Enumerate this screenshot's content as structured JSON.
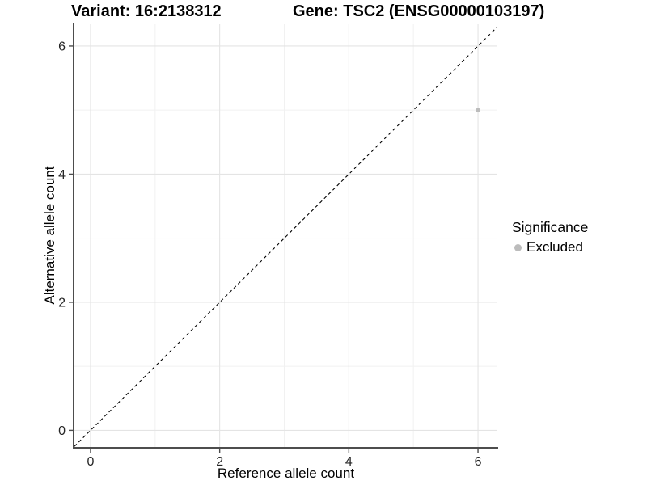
{
  "header": {
    "variant_title": "Variant: 16:2138312",
    "gene_title": "Gene: TSC2 (ENSG00000103197)"
  },
  "legend": {
    "title": "Significance",
    "items": [
      {
        "label": "Excluded",
        "color": "#bcbcbc"
      }
    ]
  },
  "chart_data": {
    "type": "scatter",
    "title": "Variant: 16:2138312  /  Gene: TSC2 (ENSG00000103197)",
    "xlabel": "Reference allele count",
    "ylabel": "Alternative allele count",
    "xlim": [
      -0.25,
      6.3
    ],
    "ylim": [
      -0.26,
      6.34
    ],
    "x_ticks": [
      0,
      2,
      4,
      6
    ],
    "y_ticks": [
      0,
      2,
      4,
      6
    ],
    "minor_gridlines_x": [
      1,
      3,
      5
    ],
    "minor_gridlines_y": [
      1,
      3,
      5
    ],
    "grid": true,
    "legend_position": "right",
    "series": [
      {
        "name": "Excluded",
        "color": "#bcbcbc",
        "points": [
          {
            "x": 6,
            "y": 5
          }
        ]
      }
    ],
    "reference_line": {
      "type": "identity",
      "style": "dashed",
      "color": "#000000"
    },
    "style": {
      "grid_major_color": "#e4e4e4",
      "grid_minor_color": "#f1f1f1",
      "axis_line_color": "#4d4d4d",
      "tick_label_color": "#262626",
      "background": "#ffffff"
    }
  }
}
